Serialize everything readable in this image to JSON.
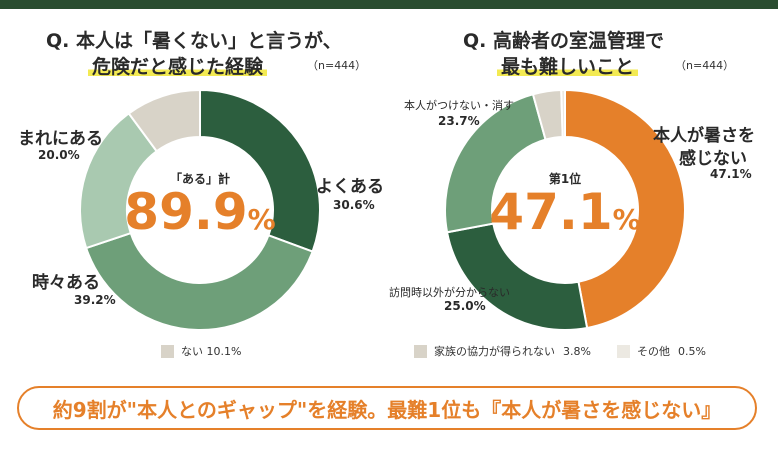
{
  "colors": {
    "dark_green": "#2c5e3e",
    "mid_green": "#6e9f79",
    "light_green": "#a9c9b0",
    "beige": "#d8d3c8",
    "orange": "#e5802a",
    "very_light": "#ece9e2",
    "highlight": "#f3ea52"
  },
  "left": {
    "question_line1": "Q. 本人は「暑くない」と言うが、",
    "question_line2": "危険だと感じた経験",
    "n_note": "（n=444）",
    "center_label": "「ある」計",
    "center_value": "89.9",
    "center_unit": "%",
    "labels": {
      "often": "よくある",
      "often_val": "30.6%",
      "sometimes": "時々ある",
      "sometimes_val": "39.2%",
      "rarely": "まれにある",
      "rarely_val": "20.0%"
    },
    "legend": {
      "none": "ない 10.1%"
    }
  },
  "right": {
    "question_line1": "Q. 高齢者の室温管理で",
    "question_line2": "最も難しいこと",
    "n_note": "（n=444）",
    "center_label": "第1位",
    "center_value": "47.1",
    "center_unit": "%",
    "labels": {
      "top_line1": "本人が暑さを",
      "top_line2": "感じない",
      "top_val": "47.1%",
      "visit": "訪問時以外が分からない",
      "visit_val": "25.0%",
      "turnoff": "本人がつけない・消す",
      "turnoff_val": "23.7%"
    },
    "legend": {
      "family": "家族の協力が得られない",
      "family_val": "3.8%",
      "other": "その他",
      "other_val": "0.5%"
    }
  },
  "conclusion": "約9割が\"本人とのギャップ\"を経験。最難1位も『本人が暑さを感じない』",
  "chart_data": [
    {
      "type": "pie",
      "title": "Q. 本人は「暑くない」と言うが、危険だと感じた経験",
      "categories": [
        "よくある",
        "時々ある",
        "まれにある",
        "ない"
      ],
      "values": [
        30.6,
        39.2,
        20.0,
        10.1
      ],
      "colors": [
        "#2c5e3e",
        "#6e9f79",
        "#a9c9b0",
        "#d8d3c8"
      ],
      "center_text": "「ある」計 89.9%"
    },
    {
      "type": "pie",
      "title": "Q. 高齢者の室温管理で最も難しいこと",
      "categories": [
        "本人が暑さを感じない",
        "訪問時以外が分からない",
        "本人がつけない・消す",
        "家族の協力が得られない",
        "その他"
      ],
      "values": [
        47.1,
        25.0,
        23.7,
        3.8,
        0.5
      ],
      "colors": [
        "#e5802a",
        "#2c5e3e",
        "#6e9f79",
        "#d8d3c8",
        "#ece9e2"
      ],
      "center_text": "第1位 47.1%"
    }
  ]
}
